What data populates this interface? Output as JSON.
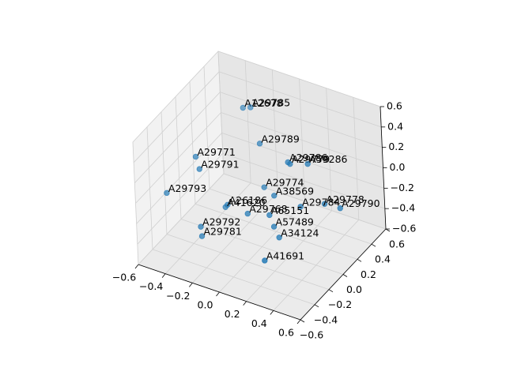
{
  "chart_data": {
    "type": "scatter3d",
    "color": "#1f77b4",
    "labels": [
      "A12678",
      "A29785",
      "A29789",
      "A29786",
      "A29779",
      "A59286",
      "A29771",
      "A29791",
      "A29793",
      "A29774",
      "A38569",
      "A29778",
      "A29784",
      "A29790",
      "A26186",
      "A41620",
      "A29768",
      "A65151",
      "A57489",
      "A29792",
      "A29781",
      "A34124",
      "A41691"
    ],
    "x": [
      -0.22,
      -0.18,
      -0.05,
      0.15,
      0.16,
      0.27,
      -0.34,
      -0.31,
      -0.48,
      -0.02,
      0.08,
      0.35,
      0.23,
      0.46,
      -0.19,
      -0.2,
      -0.03,
      0.1,
      0.13,
      -0.28,
      -0.28,
      0.16,
      0.2
    ],
    "y": [
      0.22,
      0.25,
      0.12,
      0.13,
      0.14,
      0.18,
      -0.23,
      -0.24,
      -0.39,
      0.1,
      0.05,
      0.24,
      0.13,
      0.25,
      -0.1,
      -0.11,
      -0.12,
      -0.06,
      -0.06,
      -0.31,
      -0.3,
      -0.05,
      -0.33
    ],
    "z": [
      0.5,
      0.5,
      0.3,
      0.2,
      0.18,
      0.2,
      0.3,
      0.2,
      0.0,
      -0.1,
      -0.1,
      -0.2,
      -0.2,
      -0.2,
      -0.2,
      -0.22,
      -0.2,
      -0.2,
      -0.3,
      -0.3,
      -0.4,
      -0.4,
      -0.4
    ],
    "xlim": [
      -0.6,
      0.6
    ],
    "ylim": [
      -0.6,
      0.6
    ],
    "zlim": [
      -0.6,
      0.6
    ],
    "xticks": [
      {
        "value": -0.6,
        "label": "−0.6"
      },
      {
        "value": -0.4,
        "label": "−0.4"
      },
      {
        "value": -0.2,
        "label": "−0.2"
      },
      {
        "value": 0,
        "label": "0.0"
      },
      0.2,
      0.4,
      0.6
    ],
    "yticks": [
      {
        "value": -0.6,
        "label": "−0.6"
      },
      {
        "value": -0.4,
        "label": "−0.4"
      },
      {
        "value": -0.2,
        "label": "−0.2"
      },
      {
        "value": 0,
        "label": "0.0"
      },
      0.2,
      0.4,
      0.6
    ],
    "zticks": [
      {
        "value": -0.6,
        "label": "−0.6"
      },
      {
        "value": -0.4,
        "label": "−0.4"
      },
      {
        "value": -0.2,
        "label": "−0.2"
      },
      {
        "value": 0,
        "label": "0.0"
      },
      0.2,
      0.4,
      0.6
    ],
    "grid": true
  }
}
